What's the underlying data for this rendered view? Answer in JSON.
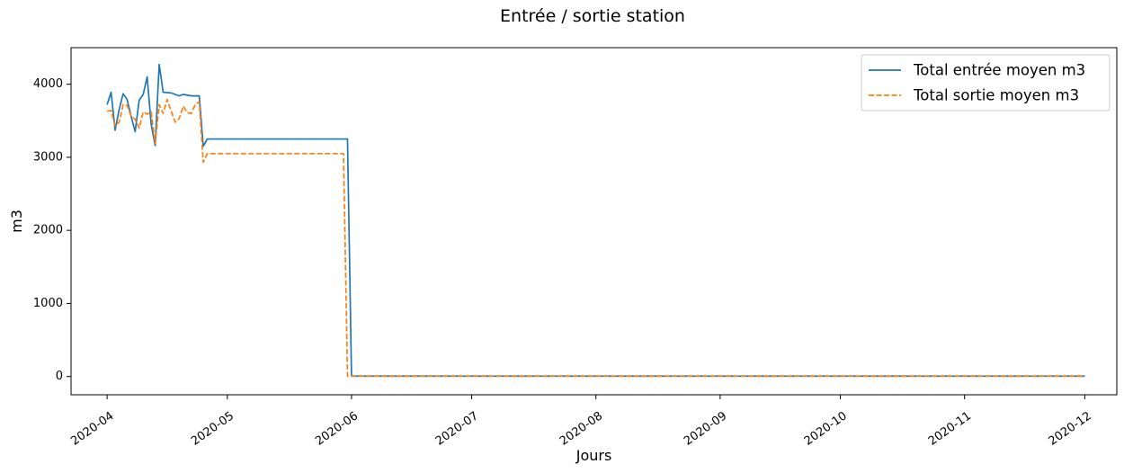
{
  "chart_data": {
    "type": "line",
    "title": "Entrée / sortie station",
    "xlabel": "Jours",
    "ylabel": "m3",
    "xlim": [
      "2020-03-23",
      "2020-12-09"
    ],
    "ylim": [
      -250,
      4500
    ],
    "x_ticks": [
      "2020-04",
      "2020-05",
      "2020-06",
      "2020-07",
      "2020-08",
      "2020-09",
      "2020-10",
      "2020-11",
      "2020-12"
    ],
    "y_ticks": [
      0,
      1000,
      2000,
      3000,
      4000
    ],
    "grid": false,
    "legend_position": "top-right",
    "series": [
      {
        "name": "Total entrée moyen m3",
        "color": "#1f77b4",
        "style": "solid",
        "points": [
          [
            "2020-04-01",
            3720
          ],
          [
            "2020-04-02",
            3890
          ],
          [
            "2020-04-03",
            3370
          ],
          [
            "2020-04-04",
            3650
          ],
          [
            "2020-04-05",
            3870
          ],
          [
            "2020-04-06",
            3790
          ],
          [
            "2020-04-07",
            3560
          ],
          [
            "2020-04-08",
            3350
          ],
          [
            "2020-04-09",
            3780
          ],
          [
            "2020-04-10",
            3860
          ],
          [
            "2020-04-11",
            4100
          ],
          [
            "2020-04-12",
            3450
          ],
          [
            "2020-04-13",
            3160
          ],
          [
            "2020-04-14",
            4270
          ],
          [
            "2020-04-15",
            3890
          ],
          [
            "2020-04-17",
            3880
          ],
          [
            "2020-04-18",
            3860
          ],
          [
            "2020-04-19",
            3840
          ],
          [
            "2020-04-20",
            3860
          ],
          [
            "2020-04-22",
            3840
          ],
          [
            "2020-04-24",
            3840
          ],
          [
            "2020-04-25",
            3150
          ],
          [
            "2020-04-26",
            3250
          ],
          [
            "2020-05-31",
            3250
          ],
          [
            "2020-06-01",
            5
          ],
          [
            "2020-12-01",
            5
          ]
        ]
      },
      {
        "name": "Total sortie moyen m3",
        "color": "#ff7f0e",
        "style": "dashed",
        "points": [
          [
            "2020-04-01",
            3630
          ],
          [
            "2020-04-02",
            3640
          ],
          [
            "2020-04-03",
            3430
          ],
          [
            "2020-04-04",
            3480
          ],
          [
            "2020-04-05",
            3720
          ],
          [
            "2020-04-06",
            3710
          ],
          [
            "2020-04-07",
            3560
          ],
          [
            "2020-04-08",
            3520
          ],
          [
            "2020-04-09",
            3400
          ],
          [
            "2020-04-10",
            3620
          ],
          [
            "2020-04-11",
            3590
          ],
          [
            "2020-04-12",
            3620
          ],
          [
            "2020-04-13",
            3190
          ],
          [
            "2020-04-14",
            3720
          ],
          [
            "2020-04-15",
            3600
          ],
          [
            "2020-04-16",
            3790
          ],
          [
            "2020-04-17",
            3630
          ],
          [
            "2020-04-18",
            3480
          ],
          [
            "2020-04-19",
            3530
          ],
          [
            "2020-04-20",
            3700
          ],
          [
            "2020-04-21",
            3610
          ],
          [
            "2020-04-22",
            3600
          ],
          [
            "2020-04-23",
            3720
          ],
          [
            "2020-04-24",
            3760
          ],
          [
            "2020-04-25",
            2930
          ],
          [
            "2020-04-26",
            3050
          ],
          [
            "2020-05-30",
            3050
          ],
          [
            "2020-05-31",
            5
          ],
          [
            "2020-12-01",
            5
          ]
        ]
      }
    ]
  }
}
